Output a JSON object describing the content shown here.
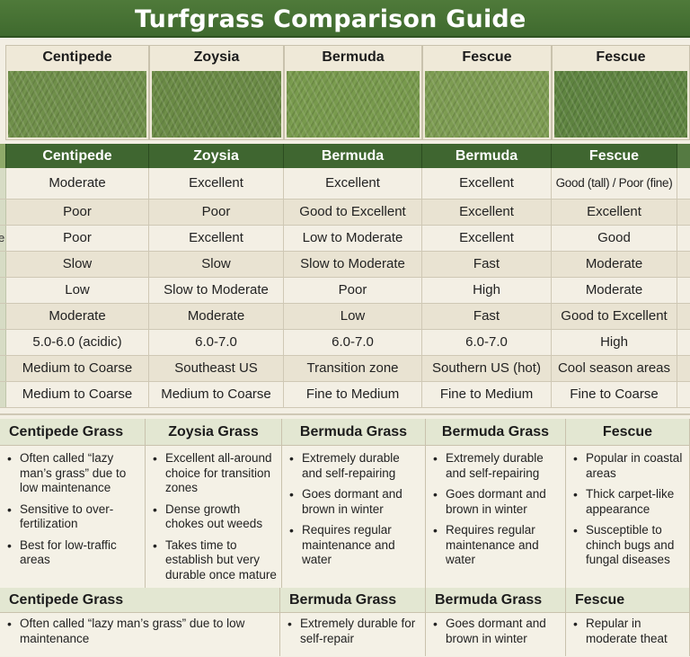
{
  "title": "Turfgrass Comparison Guide",
  "photos": [
    {
      "name": "Centipede",
      "color": "#6f8f4a"
    },
    {
      "name": "Zoysia",
      "color": "#6a8a45"
    },
    {
      "name": "Bermuda",
      "color": "#789a4d"
    },
    {
      "name": "Fescue",
      "color": "#7d9c52"
    },
    {
      "name": "Fescue",
      "color": "#5e8340"
    }
  ],
  "comparison": {
    "headers": [
      "Centipede",
      "Zoysia",
      "Bermuda",
      "Bermuda",
      "Fescue"
    ],
    "row_stub_fragment": "e",
    "rows": [
      [
        "Moderate",
        "Excellent",
        "Excellent",
        "Excellent",
        "Good (tall) / Poor (fine)"
      ],
      [
        "Poor",
        "Poor",
        "Good to Excellent",
        "Excellent",
        "Excellent"
      ],
      [
        "Poor",
        "Excellent",
        "Low to Moderate",
        "Excellent",
        "Good"
      ],
      [
        "Slow",
        "Slow",
        "Slow to Moderate",
        "Fast",
        "Moderate"
      ],
      [
        "Low",
        "Slow to Moderate",
        "Poor",
        "High",
        "Moderate"
      ],
      [
        "Moderate",
        "Moderate",
        "Low",
        "Fast",
        "Good to Excellent"
      ],
      [
        "5.0-6.0 (acidic)",
        "6.0-7.0",
        "6.0-7.0",
        "6.0-7.0",
        "High"
      ],
      [
        "Medium to Coarse",
        "Southeast US",
        "Transition zone",
        "Southern US (hot)",
        "Cool season areas"
      ],
      [
        "Medium to Coarse",
        "Medium to Coarse",
        "Fine to Medium",
        "Fine to Medium",
        "Fine to Coarse"
      ]
    ]
  },
  "notes": [
    {
      "title": "Centipede Grass",
      "items": [
        "Often called “lazy man’s grass” due to low maintenance",
        "Sensitive to over-fertilization",
        "Best for low-traffic areas"
      ]
    },
    {
      "title": "Zoysia Grass",
      "items": [
        "Excellent all-around choice for transition zones",
        "Dense growth chokes out weeds",
        "Takes time to establish but very durable once mature"
      ]
    },
    {
      "title": "Bermuda Grass",
      "items": [
        "Extremely durable and self-repairing",
        "Goes dormant and brown in winter",
        "Requires regular maintenance and water"
      ]
    },
    {
      "title": "Bermuda Grass",
      "items": [
        "Extremely durable and self-repairing",
        "Goes dormant and brown in winter",
        "Requires regular maintenance and water"
      ]
    },
    {
      "title": "Fescue",
      "items": [
        "Popular in coastal areas",
        "Thick carpet-like appearance",
        "Susceptible to chinch bugs and fungal diseases"
      ]
    }
  ],
  "notes_bottom": [
    {
      "title": "Centipede Grass",
      "items": [
        "Often called “lazy man’s grass” due to low maintenance"
      ]
    },
    {
      "title": "Bermuda Grass",
      "items": [
        "Extremely durable for self-repair"
      ]
    },
    {
      "title": "Bermuda Grass",
      "items": [
        "Goes dormant and brown in winter"
      ]
    },
    {
      "title": "Fescue",
      "items": [
        "Repular in moderate theat"
      ]
    }
  ]
}
